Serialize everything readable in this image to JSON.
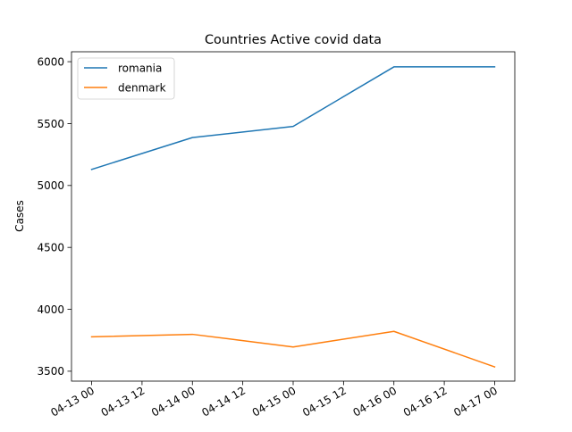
{
  "chart_data": {
    "type": "line",
    "title": "Countries Active covid data",
    "xlabel": "",
    "ylabel": "Cases",
    "x": [
      "2020-04-13",
      "2020-04-14",
      "2020-04-15",
      "2020-04-16",
      "2020-04-17"
    ],
    "x_ticks": [
      "04-13 00",
      "04-13 12",
      "04-14 00",
      "04-14 12",
      "04-15 00",
      "04-15 12",
      "04-16 00",
      "04-16 12",
      "04-17 00"
    ],
    "y_ticks": [
      3500,
      4000,
      4500,
      5000,
      5500,
      6000
    ],
    "ylim": [
      3420,
      6080
    ],
    "legend_position": "upper-left",
    "grid": false,
    "series": [
      {
        "name": "romania",
        "color": "#1f77b4",
        "values": [
          5130,
          5387,
          5477,
          5958,
          5958
        ]
      },
      {
        "name": "denmark",
        "color": "#ff7f0e",
        "values": [
          3778,
          3798,
          3696,
          3822,
          3535
        ]
      }
    ]
  }
}
